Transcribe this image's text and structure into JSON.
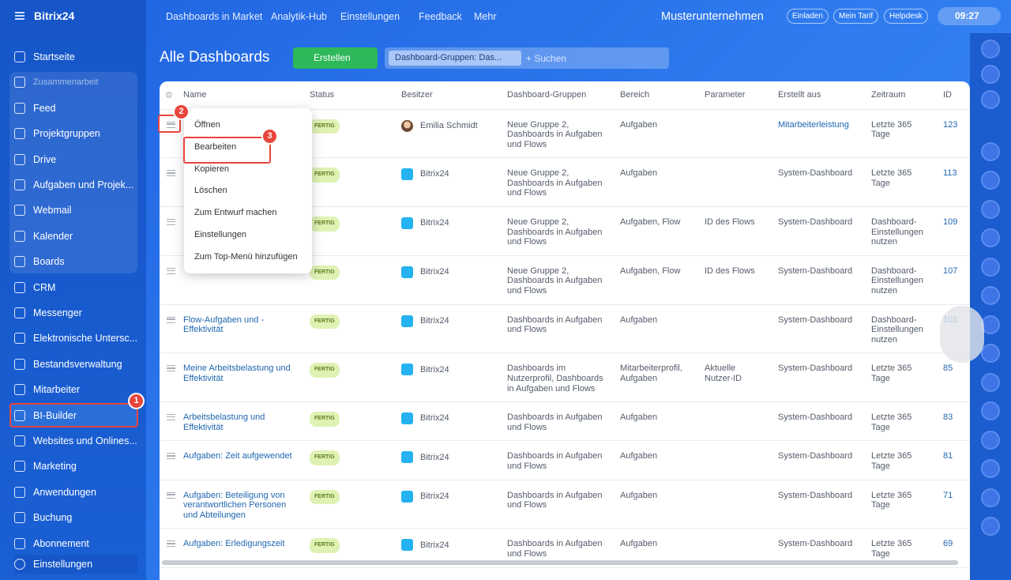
{
  "sidebar": {
    "logo": "Bitrix24",
    "items": [
      "Startseite",
      "Zusammenarbeit",
      "Feed",
      "Projektgruppen",
      "Drive",
      "Aufgaben und Projek...",
      "Webmail",
      "Kalender",
      "Boards",
      "CRM",
      "Messenger",
      "Elektronische Untersc...",
      "Bestandsverwaltung",
      "Mitarbeiter",
      "BI-Builder",
      "Websites und Onlines...",
      "Marketing",
      "Anwendungen",
      "Buchung",
      "Abonnement"
    ],
    "footer": "Einstellungen"
  },
  "topbar": {
    "nav": [
      "Dashboards in Market",
      "Analytik-Hub",
      "Einstellungen",
      "Feedback",
      "Mehr"
    ],
    "company": "Musterunternehmen",
    "buttons": [
      "Einladen",
      "Mein Tarif",
      "Helpdesk"
    ],
    "time": "09:27"
  },
  "toolbar": {
    "title": "Alle Dashboards",
    "create": "Erstellen",
    "filter": "Dashboard-Gruppen: Das...",
    "search": "+ Suchen"
  },
  "table": {
    "headers": [
      "Name",
      "Status",
      "Besitzer",
      "Dashboard-Gruppen",
      "Bereich",
      "Parameter",
      "Erstellt aus",
      "Zeitraum",
      "ID"
    ],
    "rows": [
      {
        "name": null,
        "status": "FERTIG",
        "owner": "Emilia Schmidt",
        "groups": "Neue Gruppe 2, Dashboards in Aufgaben und Flows",
        "area": "Aufgaben",
        "params": null,
        "source": "Mitarbeiterleistung",
        "period": "Letzte 365 Tage",
        "id": 123
      },
      {
        "name": null,
        "status": "FERTIG",
        "owner": "Bitrix24",
        "groups": "Neue Gruppe 2, Dashboards in Aufgaben und Flows",
        "area": "Aufgaben",
        "params": null,
        "source": "System-Dashboard",
        "period": "Letzte 365 Tage",
        "id": 113
      },
      {
        "name": null,
        "status": "FERTIG",
        "owner": "Bitrix24",
        "groups": "Neue Gruppe 2, Dashboards in Aufgaben und Flows",
        "area": "Aufgaben, Flow",
        "params": "ID des Flows",
        "source": "System-Dashboard",
        "period": "Dashboard-Einstellungen nutzen",
        "id": 109
      },
      {
        "name": null,
        "status": "FERTIG",
        "owner": "Bitrix24",
        "groups": "Neue Gruppe 2, Dashboards in Aufgaben und Flows",
        "area": "Aufgaben, Flow",
        "params": "ID des Flows",
        "source": "System-Dashboard",
        "period": "Dashboard-Einstellungen nutzen",
        "id": 107
      },
      {
        "name": "Flow-Aufgaben und -Effektivität",
        "status": "FERTIG",
        "owner": "Bitrix24",
        "groups": "Dashboards in Aufgaben und Flows",
        "area": "Aufgaben",
        "params": null,
        "source": "System-Dashboard",
        "period": "Dashboard-Einstellungen nutzen",
        "id": 101
      },
      {
        "name": "Meine Arbeitsbelastung und Effektivität",
        "status": "FERTIG",
        "owner": "Bitrix24",
        "groups": "Dashboards im Nutzerprofil, Dashboards in Aufgaben und Flows",
        "area": "Mitarbeiterprofil, Aufgaben",
        "params": "Aktuelle Nutzer-ID",
        "source": "System-Dashboard",
        "period": "Letzte 365 Tage",
        "id": 85
      },
      {
        "name": "Arbeitsbelastung und Effektivität",
        "status": "FERTIG",
        "owner": "Bitrix24",
        "groups": "Dashboards in Aufgaben und Flows",
        "area": "Aufgaben",
        "params": null,
        "source": "System-Dashboard",
        "period": "Letzte 365 Tage",
        "id": 83
      },
      {
        "name": "Aufgaben: Zeit aufgewendet",
        "status": "FERTIG",
        "owner": "Bitrix24",
        "groups": "Dashboards in Aufgaben und Flows",
        "area": "Aufgaben",
        "params": null,
        "source": "System-Dashboard",
        "period": "Letzte 365 Tage",
        "id": 81
      },
      {
        "name": "Aufgaben: Beteiligung von verantwortlichen Personen und Abteilungen",
        "status": "FERTIG",
        "owner": "Bitrix24",
        "groups": "Dashboards in Aufgaben und Flows",
        "area": "Aufgaben",
        "params": null,
        "source": "System-Dashboard",
        "period": "Letzte 365 Tage",
        "id": 71
      },
      {
        "name": "Aufgaben: Erledigungszeit",
        "status": "FERTIG",
        "owner": "Bitrix24",
        "groups": "Dashboards in Aufgaben und Flows",
        "area": "Aufgaben",
        "params": null,
        "source": "System-Dashboard",
        "period": "Letzte 365 Tage",
        "id": 69
      }
    ]
  },
  "context_menu": [
    "Öffnen",
    "Bearbeiten",
    "Kopieren",
    "Löschen",
    "Zum Entwurf machen",
    "Einstellungen",
    "Zum Top-Menü hinzufügen"
  ],
  "badges": [
    1,
    2,
    3
  ]
}
